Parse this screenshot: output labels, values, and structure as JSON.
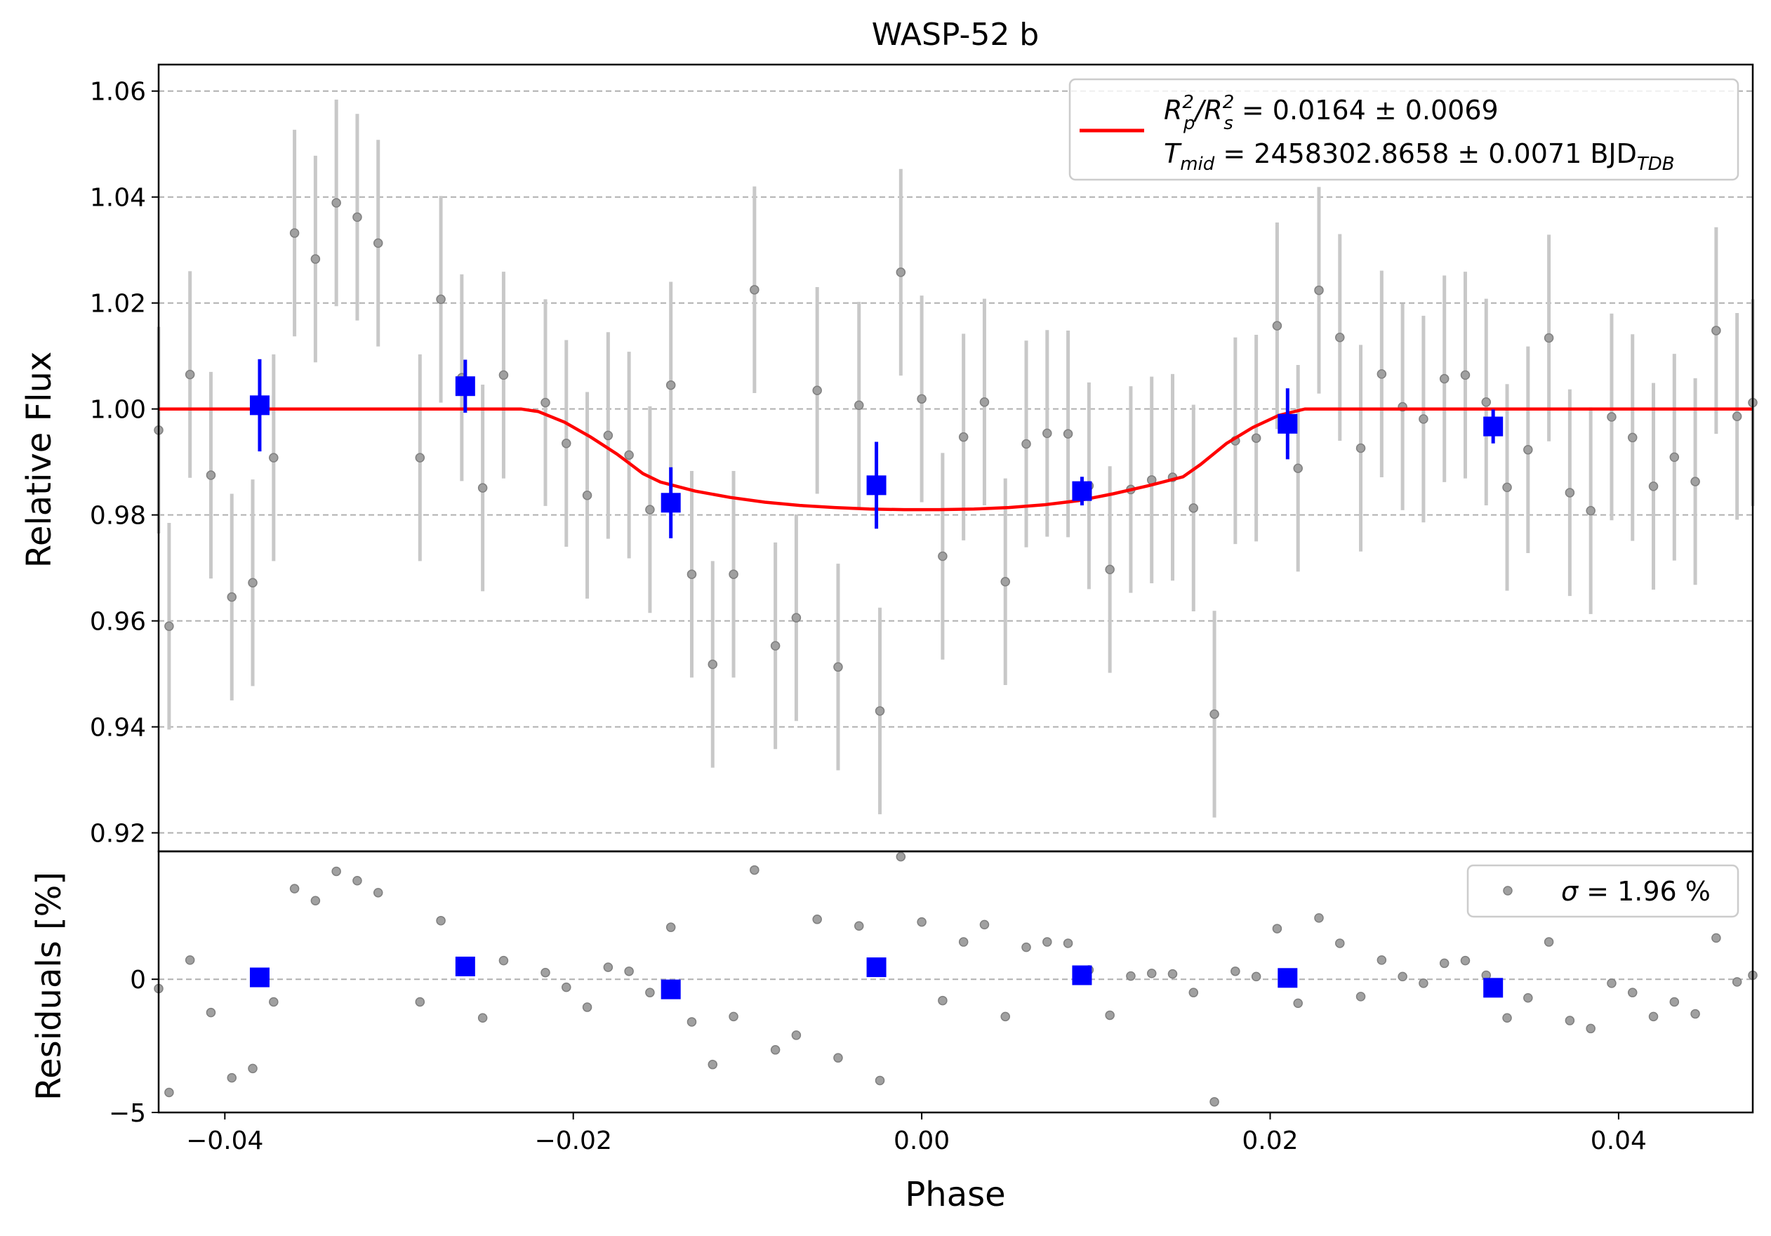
{
  "chart_data": [
    {
      "type": "scatter",
      "title": "WASP-52 b",
      "xlabel": "Phase",
      "ylabel": "Relative Flux",
      "xlim": [
        -0.0438,
        0.0477
      ],
      "ylim": [
        0.9165,
        1.065
      ],
      "xticks": [
        -0.04,
        -0.02,
        0.0,
        0.02,
        0.04
      ],
      "xtick_labels": [
        "−0.04",
        "−0.02",
        "0.00",
        "0.02",
        "0.04"
      ],
      "yticks": [
        0.92,
        0.94,
        0.96,
        0.98,
        1.0,
        1.02,
        1.04,
        1.06
      ],
      "ytick_labels": [
        "0.92",
        "0.94",
        "0.96",
        "0.98",
        "1.00",
        "1.02",
        "1.04",
        "1.06"
      ],
      "grid": "y-dashed",
      "legend": {
        "placement": "top-right",
        "line1": {
          "lhs": "R",
          "lhs_sub": "p",
          "lhs_sup": "2",
          "mid": "/R",
          "mid_sub": "s",
          "mid_sup": "2",
          "rhs": " = 0.0164 ± 0.0069"
        },
        "line2": {
          "lhs": "T",
          "lhs_sub": "mid",
          "rhs": " = 2458302.8658 ± 0.0071 BJD",
          "rhs_sub": "TDB"
        }
      },
      "colors": {
        "data": "#808080",
        "errorbar": "#c8c8c8",
        "binned": "#0000ff",
        "model": "#ff0000",
        "grid": "#b0b0b0"
      },
      "model": {
        "x": [
          -0.0438,
          -0.023,
          -0.022,
          -0.0205,
          -0.019,
          -0.0175,
          -0.016,
          -0.015,
          -0.013,
          -0.011,
          -0.009,
          -0.007,
          -0.005,
          -0.003,
          -0.001,
          0.0,
          0.001,
          0.003,
          0.005,
          0.007,
          0.009,
          0.011,
          0.013,
          0.015,
          0.016,
          0.0175,
          0.019,
          0.0205,
          0.022,
          0.023,
          0.0477
        ],
        "y": [
          1.0,
          1.0,
          0.9995,
          0.9975,
          0.9947,
          0.9915,
          0.9878,
          0.9862,
          0.9845,
          0.9833,
          0.9824,
          0.9818,
          0.9814,
          0.9811,
          0.981,
          0.981,
          0.981,
          0.9811,
          0.9814,
          0.9819,
          0.9827,
          0.984,
          0.9855,
          0.9872,
          0.9895,
          0.9935,
          0.9965,
          0.9988,
          1.0,
          1.0,
          1.0
        ]
      },
      "series": [
        {
          "kind": "data",
          "x": [
            -0.0438,
            -0.0432,
            -0.042,
            -0.0408,
            -0.0396,
            -0.0384,
            -0.0372,
            -0.036,
            -0.0348,
            -0.0336,
            -0.0324,
            -0.0312,
            -0.0288,
            -0.0276,
            -0.0264,
            -0.0252,
            -0.024,
            -0.0216,
            -0.0204,
            -0.0192,
            -0.018,
            -0.0168,
            -0.0156,
            -0.0144,
            -0.0132,
            -0.012,
            -0.0108,
            -0.0096,
            -0.0084,
            -0.0072,
            -0.006,
            -0.0048,
            -0.0036,
            -0.0024,
            -0.0012,
            0.0,
            0.0012,
            0.0024,
            0.0036,
            0.0048,
            0.006,
            0.0072,
            0.0084,
            0.0096,
            0.0108,
            0.012,
            0.0132,
            0.0144,
            0.0156,
            0.0168,
            0.018,
            0.0192,
            0.0204,
            0.0216,
            0.0228,
            0.024,
            0.0252,
            0.0264,
            0.0276,
            0.0288,
            0.03,
            0.0312,
            0.0324,
            0.0336,
            0.0348,
            0.036,
            0.0372,
            0.0384,
            0.0396,
            0.0408,
            0.042,
            0.0432,
            0.0444,
            0.0456,
            0.0468,
            0.0477
          ],
          "y": [
            0.996,
            0.959,
            1.0065,
            0.9875,
            0.9645,
            0.9672,
            0.9908,
            1.0332,
            1.0283,
            1.0389,
            1.0362,
            1.0313,
            0.9908,
            1.0207,
            1.0059,
            0.9851,
            1.0064,
            1.0012,
            0.9935,
            0.9837,
            0.995,
            0.9913,
            0.981,
            1.0045,
            0.9688,
            0.9518,
            0.9688,
            1.0225,
            0.9553,
            0.9606,
            1.0035,
            0.9513,
            1.0007,
            0.943,
            1.0258,
            1.0019,
            0.9722,
            0.9947,
            1.0013,
            0.9674,
            0.9934,
            0.9954,
            0.9953,
            0.9855,
            0.9697,
            0.9848,
            0.9866,
            0.9871,
            0.9813,
            0.9424,
            0.994,
            0.9945,
            1.0157,
            0.9888,
            1.0224,
            1.0135,
            0.9926,
            1.0066,
            1.0004,
            0.9981,
            1.0057,
            1.0064,
            1.0013,
            0.9852,
            0.9923,
            1.0134,
            0.9842,
            0.9808,
            0.9985,
            0.9946,
            0.9854,
            0.9909,
            0.9863,
            1.0148,
            0.9986,
            1.0012
          ],
          "yerr": 0.0195
        },
        {
          "kind": "binned",
          "x": [
            -0.038,
            -0.0262,
            -0.0144,
            -0.0026,
            0.0092,
            0.021,
            0.0328
          ],
          "y": [
            1.0007,
            1.0043,
            0.9823,
            0.9856,
            0.9845,
            0.9972,
            0.9967
          ],
          "yerr": [
            0.0087,
            0.005,
            0.0067,
            0.0082,
            0.0027,
            0.0067,
            0.0032
          ]
        }
      ]
    },
    {
      "type": "scatter",
      "ylabel": "Residuals [%]",
      "xlabel": "Phase",
      "xlim": [
        -0.0438,
        0.0477
      ],
      "ylim": [
        -5.0,
        4.8
      ],
      "yticks": [
        -5,
        0
      ],
      "ytick_labels": [
        "−5",
        "0"
      ],
      "legend": {
        "placement": "top-right",
        "symbol": "σ",
        "text": " = 1.96 %"
      },
      "series": [
        {
          "kind": "data",
          "x": [
            -0.0438,
            -0.0432,
            -0.042,
            -0.0408,
            -0.0396,
            -0.0384,
            -0.0372,
            -0.036,
            -0.0348,
            -0.0336,
            -0.0324,
            -0.0312,
            -0.0288,
            -0.0276,
            -0.0264,
            -0.0252,
            -0.024,
            -0.0216,
            -0.0204,
            -0.0192,
            -0.018,
            -0.0168,
            -0.0156,
            -0.0144,
            -0.0132,
            -0.012,
            -0.0108,
            -0.0096,
            -0.0084,
            -0.0072,
            -0.006,
            -0.0048,
            -0.0036,
            -0.0024,
            -0.0012,
            0.0,
            0.0012,
            0.0024,
            0.0036,
            0.0048,
            0.006,
            0.0072,
            0.0084,
            0.0096,
            0.0108,
            0.012,
            0.0132,
            0.0144,
            0.0156,
            0.0168,
            0.018,
            0.0192,
            0.0204,
            0.0216,
            0.0228,
            0.024,
            0.0252,
            0.0264,
            0.0276,
            0.0288,
            0.03,
            0.0312,
            0.0324,
            0.0336,
            0.0348,
            0.036,
            0.0372,
            0.0384,
            0.0396,
            0.0408,
            0.042,
            0.0432,
            0.0444,
            0.0456,
            0.0468,
            0.0477
          ],
          "y": [
            -0.35,
            -4.25,
            0.72,
            -1.25,
            -3.7,
            -3.35,
            -0.85,
            3.4,
            2.95,
            4.05,
            3.7,
            3.25,
            -0.85,
            2.2,
            0.63,
            -1.45,
            0.7,
            0.25,
            -0.3,
            -1.05,
            0.45,
            0.3,
            -0.5,
            1.95,
            -1.6,
            -3.2,
            -1.4,
            4.1,
            -2.65,
            -2.1,
            2.25,
            -2.95,
            2.0,
            -3.8,
            4.6,
            2.15,
            -0.8,
            1.4,
            2.05,
            -1.4,
            1.2,
            1.4,
            1.35,
            0.35,
            -1.35,
            0.12,
            0.22,
            0.2,
            -0.5,
            -4.6,
            0.3,
            0.1,
            1.9,
            -0.9,
            2.3,
            1.35,
            -0.65,
            0.72,
            0.1,
            -0.15,
            0.6,
            0.7,
            0.15,
            -1.45,
            -0.7,
            1.4,
            -1.55,
            -1.85,
            -0.15,
            -0.5,
            -1.4,
            -0.85,
            -1.3,
            1.55,
            -0.1,
            0.15
          ]
        },
        {
          "kind": "binned",
          "x": [
            -0.038,
            -0.0262,
            -0.0144,
            -0.0026,
            0.0092,
            0.021,
            0.0328
          ],
          "y": [
            0.07,
            0.48,
            -0.38,
            0.45,
            0.15,
            0.05,
            -0.32
          ]
        }
      ]
    }
  ]
}
